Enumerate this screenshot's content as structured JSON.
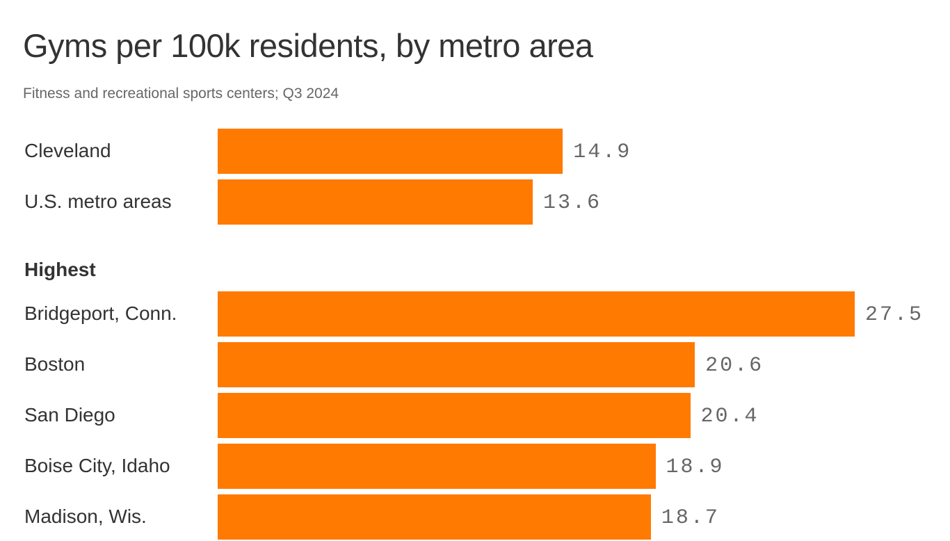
{
  "chart_data": {
    "type": "bar",
    "orientation": "horizontal",
    "title": "Gyms per 100k residents, by metro area",
    "subtitle": "Fitness and recreational sports centers; Q3 2024",
    "bar_color": "#ff7a00",
    "groups": [
      {
        "label": "",
        "categories": [
          "Cleveland",
          "U.S. metro areas"
        ],
        "values": [
          14.9,
          13.6
        ],
        "value_labels": [
          "14.9",
          "13.6"
        ]
      },
      {
        "label": "Highest",
        "categories": [
          "Bridgeport, Conn.",
          "Boston",
          "San Diego",
          "Boise City, Idaho",
          "Madison, Wis."
        ],
        "values": [
          27.5,
          20.6,
          20.4,
          18.9,
          18.7
        ],
        "value_labels": [
          "27.5",
          "20.6",
          "20.4",
          "18.9",
          "18.7"
        ]
      }
    ],
    "xlim": [
      0,
      27.5
    ],
    "grid": false
  }
}
